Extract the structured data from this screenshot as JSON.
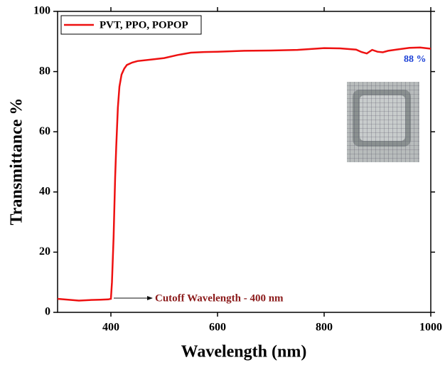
{
  "chart_data": {
    "type": "line",
    "x_label": "Wavelength (nm)",
    "y_label": "Transmittance %",
    "x": [
      300,
      320,
      340,
      360,
      380,
      395,
      400,
      402,
      405,
      408,
      410,
      413,
      416,
      420,
      425,
      430,
      440,
      450,
      475,
      500,
      525,
      550,
      575,
      600,
      650,
      700,
      750,
      800,
      830,
      860,
      870,
      880,
      890,
      900,
      910,
      920,
      940,
      960,
      980,
      1000
    ],
    "series": [
      {
        "name": "PVT, PPO, POPOP",
        "color": "#ee1111",
        "values": [
          4.5,
          4.2,
          3.9,
          4.1,
          4.2,
          4.3,
          4.5,
          10,
          25,
          45,
          55,
          68,
          75,
          79,
          81,
          82.2,
          83,
          83.5,
          84,
          84.5,
          85.5,
          86.3,
          86.5,
          86.6,
          86.9,
          87,
          87.2,
          87.8,
          87.7,
          87.3,
          86.5,
          86,
          87.2,
          86.6,
          86.4,
          86.9,
          87.4,
          87.9,
          88,
          87.6
        ]
      }
    ],
    "xlim": [
      300,
      1000
    ],
    "xticks": [
      400,
      600,
      800,
      1000
    ],
    "ylim": [
      0,
      100
    ],
    "yticks": [
      0,
      20,
      40,
      60,
      80,
      100
    ],
    "legend": "upper left",
    "annotations": [
      "88 %",
      "Cutoff Wavelength - 400 nm"
    ]
  }
}
